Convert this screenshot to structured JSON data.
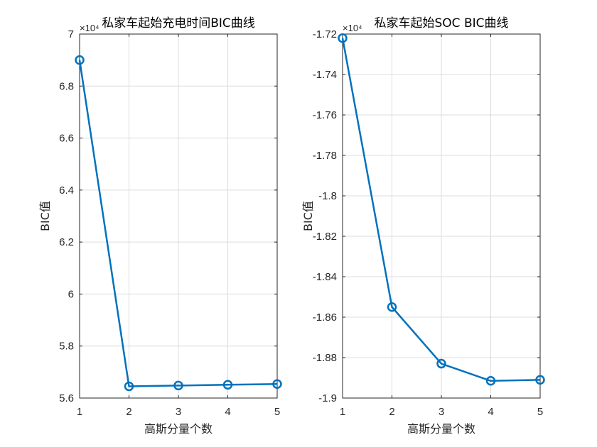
{
  "chart_data": [
    {
      "type": "line",
      "title": "私家车起始充电时间BIC曲线",
      "xlabel": "高斯分量个数",
      "ylabel": "BIC值",
      "exponent": "×10⁴",
      "x": [
        1,
        2,
        3,
        4,
        5
      ],
      "series": [
        {
          "values": [
            6.9,
            5.645,
            5.648,
            5.651,
            5.654
          ]
        }
      ],
      "xlim": [
        1,
        5
      ],
      "ylim": [
        5.6,
        7.0
      ],
      "xticks": [
        1,
        2,
        3,
        4,
        5
      ],
      "yticks": [
        5.6,
        5.8,
        6,
        6.2,
        6.4,
        6.6,
        6.8,
        7
      ],
      "ytick_labels": [
        "5.6",
        "5.8",
        "6",
        "6.2",
        "6.4",
        "6.6",
        "6.8",
        "7"
      ],
      "grid": true,
      "marker": "circle",
      "color": "#0072BD"
    },
    {
      "type": "line",
      "title": "私家车起始SOC BIC曲线",
      "xlabel": "高斯分量个数",
      "ylabel": "BIC值",
      "exponent": "×10⁴",
      "x": [
        1,
        2,
        3,
        4,
        5
      ],
      "series": [
        {
          "values": [
            -1.722,
            -1.855,
            -1.883,
            -1.8915,
            -1.891
          ]
        }
      ],
      "xlim": [
        1,
        5
      ],
      "ylim": [
        -1.9,
        -1.72
      ],
      "xticks": [
        1,
        2,
        3,
        4,
        5
      ],
      "yticks": [
        -1.9,
        -1.88,
        -1.86,
        -1.84,
        -1.82,
        -1.8,
        -1.78,
        -1.76,
        -1.74,
        -1.72
      ],
      "ytick_labels": [
        "-1.9",
        "-1.88",
        "-1.86",
        "-1.84",
        "-1.82",
        "-1.8",
        "-1.78",
        "-1.76",
        "-1.74",
        "-1.72"
      ],
      "grid": true,
      "marker": "circle",
      "color": "#0072BD"
    }
  ]
}
